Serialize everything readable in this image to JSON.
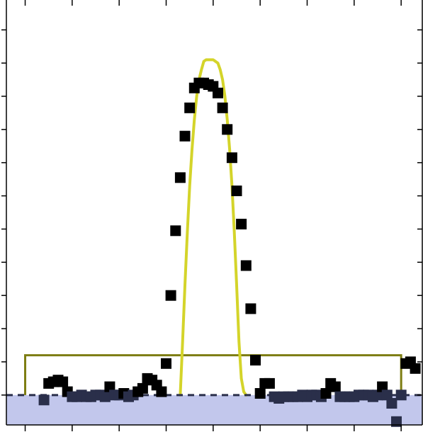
{
  "chart_data": {
    "type": "scatter",
    "title": "",
    "xlabel": "",
    "ylabel": "",
    "x_ticks": [
      -4,
      -3,
      -2,
      -1,
      0,
      1,
      2,
      3,
      4
    ],
    "y_ticks": [
      0,
      1,
      2,
      3,
      4,
      5,
      6,
      7,
      8,
      9,
      10,
      11
    ],
    "xlim": [
      -4.4,
      4.45
    ],
    "ylim": [
      -0.9,
      11.9
    ],
    "tick_labels_shown": false,
    "grid": false,
    "colors": {
      "markers": "#000000",
      "markers_below_baseline": "#2a2f4a",
      "fit_curve": "#d4d42a",
      "box_outline": "#7d7d12",
      "negative_band": "#c2c7ec",
      "baseline": "#2a2f4a"
    },
    "series": [
      {
        "kind": "markers",
        "x": [
          -3.6,
          -3.5,
          -3.4,
          -3.3,
          -3.2,
          -3.1,
          -3.0,
          -2.9,
          -2.8,
          -2.7,
          -2.6,
          -2.5,
          -2.4,
          -2.3,
          -2.2,
          -2.1,
          -2.0,
          -1.9,
          -1.8,
          -1.7,
          -1.6,
          -1.5,
          -1.4,
          -1.3,
          -1.2,
          -1.1,
          -1.0,
          -0.9,
          -0.8,
          -0.7,
          -0.6,
          -0.5,
          -0.4,
          -0.3,
          -0.2,
          -0.1,
          0.0,
          0.1,
          0.2,
          0.3,
          0.4,
          0.5,
          0.6,
          0.7,
          0.8,
          0.9,
          1.0,
          1.1,
          1.2,
          1.3,
          1.4,
          1.5,
          1.6,
          1.7,
          1.8,
          1.9,
          2.0,
          2.1,
          2.2,
          2.3,
          2.4,
          2.5,
          2.6,
          2.7,
          2.8,
          2.9,
          3.0,
          3.1,
          3.2,
          3.3,
          3.4,
          3.5,
          3.6,
          3.7,
          3.8,
          3.9,
          4.0,
          4.1,
          4.2,
          4.3
        ],
        "y": [
          -0.15,
          0.35,
          0.4,
          0.45,
          0.4,
          0.1,
          -0.05,
          -0.05,
          0.0,
          -0.05,
          -0.05,
          0.0,
          0.0,
          -0.05,
          0.25,
          0.0,
          0.0,
          0.05,
          -0.05,
          0.0,
          0.1,
          0.2,
          0.5,
          0.45,
          0.3,
          0.1,
          0.95,
          3.0,
          4.95,
          6.55,
          7.8,
          8.65,
          9.25,
          9.4,
          9.4,
          9.35,
          9.3,
          9.1,
          8.65,
          8.0,
          7.15,
          6.15,
          5.15,
          3.9,
          2.6,
          1.05,
          0.05,
          0.35,
          0.35,
          -0.05,
          -0.1,
          -0.05,
          -0.05,
          -0.05,
          -0.05,
          0.0,
          -0.05,
          0.0,
          0.0,
          -0.05,
          0.05,
          0.35,
          0.25,
          -0.05,
          -0.05,
          -0.05,
          -0.05,
          0.0,
          0.0,
          0.0,
          -0.05,
          0.0,
          0.25,
          0.0,
          -0.25,
          -0.8,
          0.0,
          0.95,
          1.0,
          0.8
        ]
      },
      {
        "kind": "fit_curve",
        "x": [
          -0.7,
          -0.65,
          -0.6,
          -0.55,
          -0.5,
          -0.45,
          -0.4,
          -0.35,
          -0.3,
          -0.25,
          -0.2,
          -0.15,
          -0.1,
          -0.05,
          0.0,
          0.05,
          0.1,
          0.15,
          0.2,
          0.25,
          0.3,
          0.35,
          0.4,
          0.45,
          0.5,
          0.55,
          0.6,
          0.65,
          0.7
        ],
        "y": [
          0.0,
          1.6,
          3.3,
          4.9,
          6.3,
          7.4,
          8.3,
          9.0,
          9.5,
          9.8,
          10.05,
          10.1,
          10.1,
          10.1,
          10.1,
          10.05,
          10.0,
          9.8,
          9.5,
          9.0,
          8.3,
          7.4,
          6.3,
          4.9,
          3.3,
          1.6,
          0.5,
          0.1,
          0.0
        ]
      }
    ],
    "box": {
      "x": [
        -4.0,
        4.0
      ],
      "y": [
        0.0,
        1.2
      ]
    },
    "baseline_y": 0,
    "negative_band": {
      "y": [
        -0.9,
        0
      ]
    }
  }
}
